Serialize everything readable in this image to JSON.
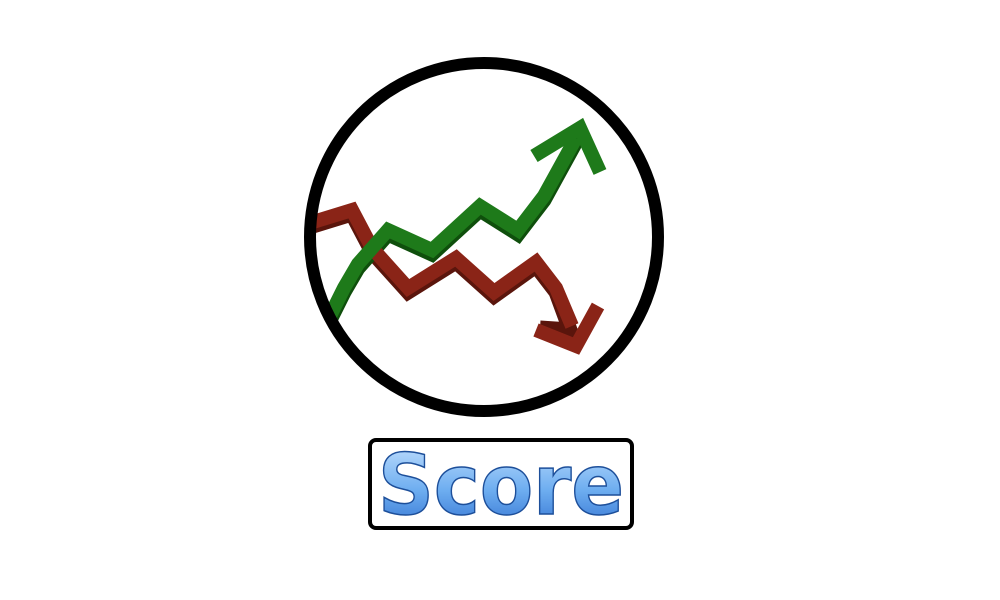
{
  "logo": {
    "icon": "stock-market-chart-icon",
    "ring_color": "#000000",
    "up_trend_color": "#1e7a1a",
    "up_trend_shadow": "#0f4f0c",
    "down_trend_color": "#8a2417",
    "down_trend_shadow": "#5a150c"
  },
  "label": {
    "text": "Score",
    "fill_top": "#c9e4ff",
    "fill_mid": "#6eaef0",
    "fill_bottom": "#2f6fd0",
    "outline": "#1d4f9a"
  }
}
